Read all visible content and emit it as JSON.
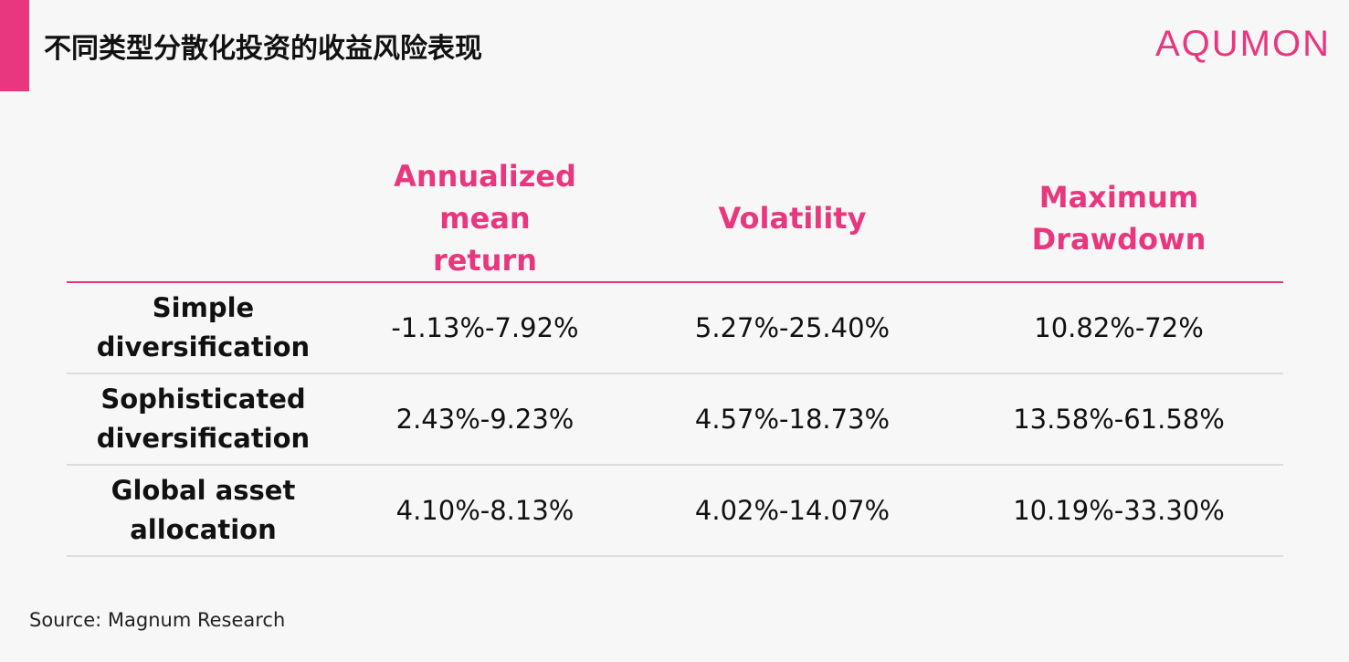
{
  "header": {
    "title": "不同类型分散化投资的收益风险表现",
    "logo": "AQUMON"
  },
  "table": {
    "columns": [
      "Annualized mean return",
      "Volatility",
      "Maximum Drawdown"
    ],
    "rows": [
      {
        "label": "Simple diversification",
        "values": [
          "-1.13%-7.92%",
          "5.27%-25.40%",
          "10.82%-72%"
        ]
      },
      {
        "label": "Sophisticated diversification",
        "values": [
          "2.43%-9.23%",
          "4.57%-18.73%",
          "13.58%-61.58%"
        ]
      },
      {
        "label": "Global asset allocation",
        "values": [
          "4.10%-8.13%",
          "4.02%-14.07%",
          "10.19%-33.30%"
        ]
      }
    ]
  },
  "source": "Source:  Magnum Research"
}
